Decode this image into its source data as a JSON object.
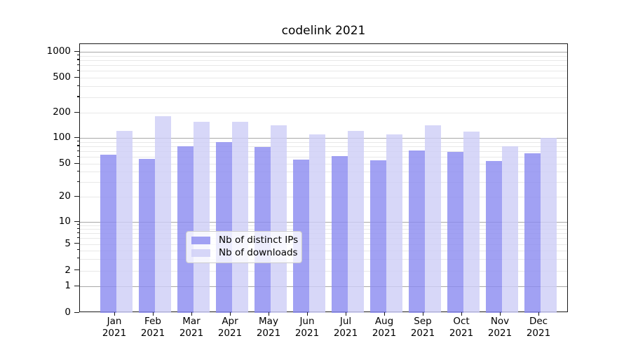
{
  "chart_data": {
    "type": "bar",
    "title": "codelink 2021",
    "categories": [
      "Jan 2021",
      "Feb 2021",
      "Mar 2021",
      "Apr 2021",
      "May 2021",
      "Jun 2021",
      "Jul 2021",
      "Aug 2021",
      "Sep 2021",
      "Oct 2021",
      "Nov 2021",
      "Dec 2021"
    ],
    "series": [
      {
        "name": "Nb of distinct IPs",
        "color": "rgba(140,140,240,0.82)",
        "values": [
          64,
          57,
          80,
          89,
          79,
          56,
          61,
          55,
          72,
          69,
          54,
          66
        ]
      },
      {
        "name": "Nb of downloads",
        "color": "rgba(206,206,246,0.82)",
        "values": [
          121,
          180,
          157,
          155,
          142,
          111,
          121,
          111,
          141,
          120,
          80,
          100
        ]
      }
    ],
    "yscale": "symlog",
    "y_ticks": [
      0,
      1,
      2,
      5,
      10,
      20,
      50,
      100,
      200,
      500,
      1000
    ],
    "y_tick_labels": [
      "0",
      "1",
      "2",
      "5",
      "10",
      "20",
      "50",
      "100",
      "200",
      "500",
      "1000"
    ],
    "major_grid_values": [
      1,
      10,
      100,
      1000
    ],
    "ylim": [
      0,
      1230
    ],
    "xlabel": "",
    "ylabel": "",
    "grid": "both",
    "legend_position": "lower center",
    "colors": {
      "bar_dark": "rgba(140,140,240,0.82)",
      "bar_light": "rgba(206,206,246,0.82)",
      "major_grid": "rgba(0,0,0,0.34)",
      "minor_grid": "rgba(0,0,0,0.09)",
      "spine": "#1a1a1a",
      "background": "#ffffff"
    }
  }
}
